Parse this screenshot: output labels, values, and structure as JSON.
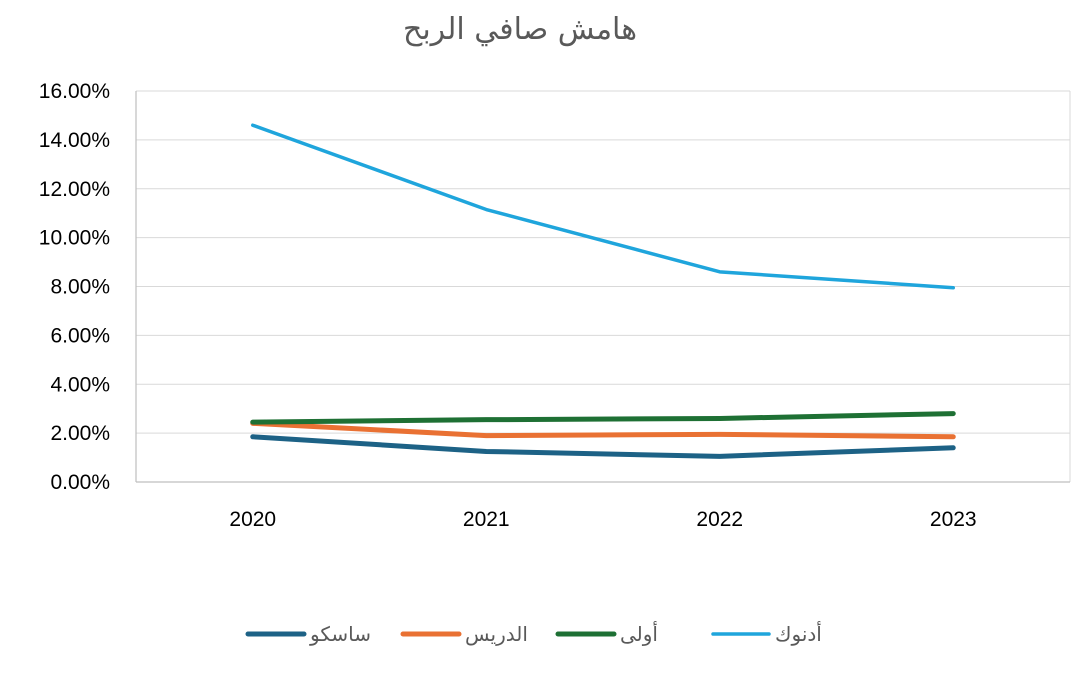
{
  "chart_data": {
    "type": "line",
    "title": "هامش صافي الربح",
    "categories": [
      "2020",
      "2021",
      "2022",
      "2023"
    ],
    "y_ticks": [
      "0.00%",
      "2.00%",
      "4.00%",
      "6.00%",
      "8.00%",
      "10.00%",
      "12.00%",
      "14.00%",
      "16.00%"
    ],
    "ylim": [
      0,
      16
    ],
    "y_unit": "%",
    "grid": true,
    "legend_position": "bottom",
    "series": [
      {
        "name": "ساسكو",
        "color": "#1d6286",
        "values": [
          1.85,
          1.25,
          1.05,
          1.4
        ]
      },
      {
        "name": "الدريس",
        "color": "#e97133",
        "values": [
          2.4,
          1.9,
          1.95,
          1.85
        ]
      },
      {
        "name": "أولى",
        "color": "#1e7034",
        "values": [
          2.45,
          2.55,
          2.6,
          2.8
        ]
      },
      {
        "name": "أدنوك",
        "color": "#1fa5dc",
        "values": [
          14.6,
          11.15,
          8.6,
          7.95
        ]
      }
    ]
  }
}
